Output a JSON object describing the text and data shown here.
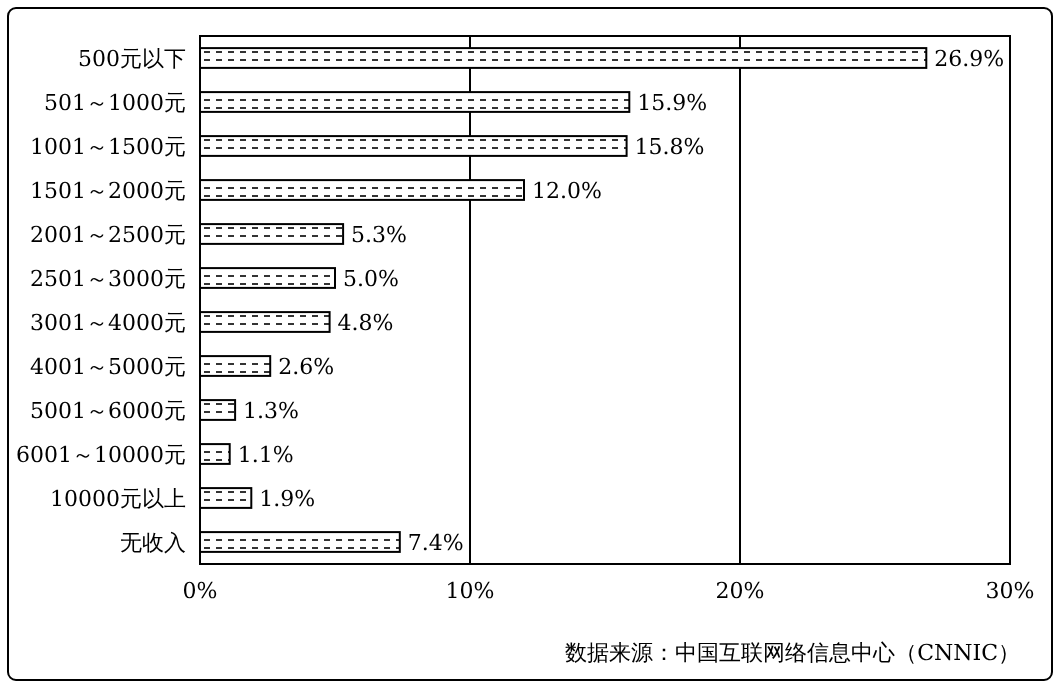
{
  "chart_data": {
    "type": "bar",
    "orientation": "horizontal",
    "categories": [
      "500元以下",
      "501～1000元",
      "1001～1500元",
      "1501～2000元",
      "2001～2500元",
      "2501～3000元",
      "3001～4000元",
      "4001～5000元",
      "5001～6000元",
      "6001～10000元",
      "10000元以上",
      "无收入"
    ],
    "values": [
      26.9,
      15.9,
      15.8,
      12.0,
      5.3,
      5.0,
      4.8,
      2.6,
      1.3,
      1.1,
      1.9,
      7.4
    ],
    "value_labels": [
      "26.9%",
      "15.9%",
      "15.8%",
      "12.0%",
      "5.3%",
      "5.0%",
      "4.8%",
      "2.6%",
      "1.3%",
      "1.1%",
      "1.9%",
      "7.4%"
    ],
    "color": "#000000",
    "xlim": [
      0,
      30
    ],
    "xticks": [
      {
        "value": 0,
        "label": "0%"
      },
      {
        "value": 10,
        "label": "10%"
      },
      {
        "value": 20,
        "label": "20%"
      },
      {
        "value": 30,
        "label": "30%"
      }
    ],
    "grid": "x",
    "annotations": [
      "数据来源：中国互联网络信息中心（CNNIC）"
    ]
  }
}
